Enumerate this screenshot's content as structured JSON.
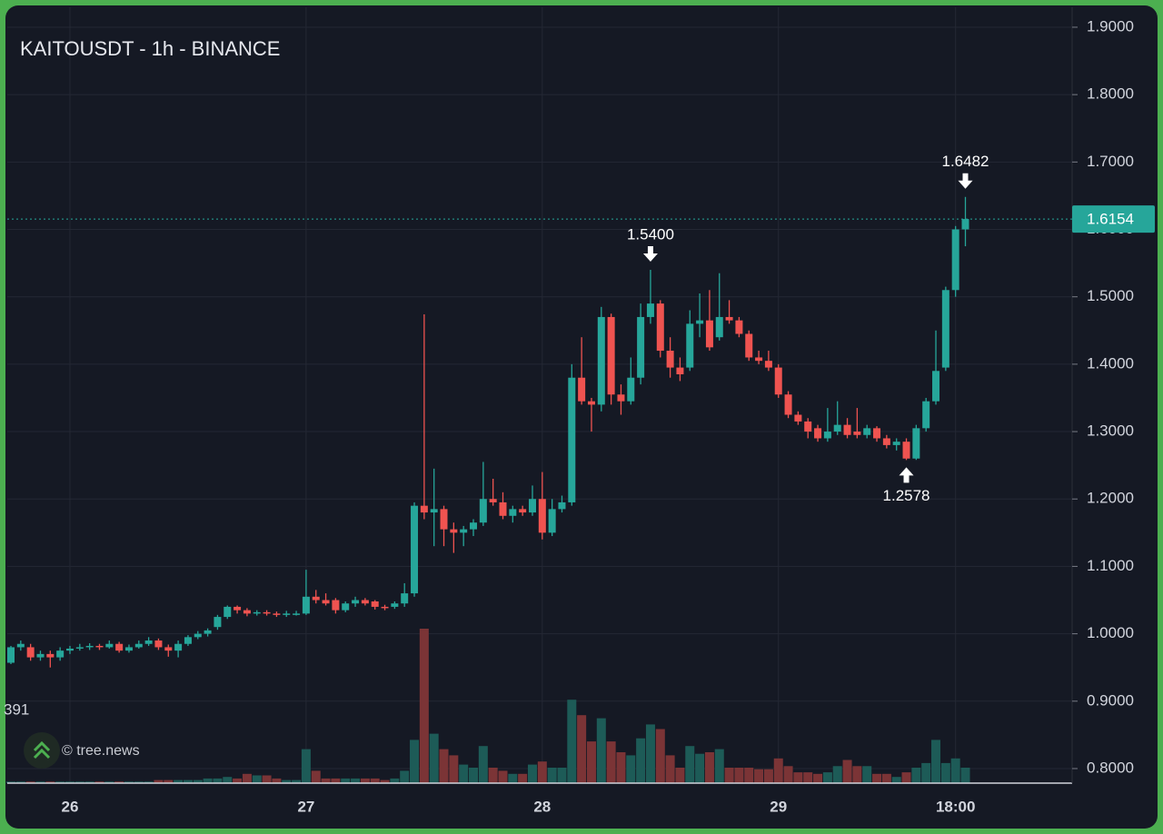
{
  "chart_data": {
    "type": "candlestick",
    "title": "KAITOUSDT - 1h - BINANCE",
    "watermark": "© tree.news",
    "categories": [
      null,
      null,
      null,
      null,
      null,
      null,
      "26",
      null,
      null,
      null,
      null,
      null,
      null,
      null,
      null,
      null,
      null,
      null,
      null,
      null,
      null,
      null,
      null,
      null,
      null,
      null,
      null,
      null,
      null,
      null,
      "27",
      null,
      null,
      null,
      null,
      null,
      null,
      null,
      null,
      null,
      null,
      null,
      null,
      null,
      null,
      null,
      null,
      null,
      null,
      null,
      null,
      null,
      null,
      null,
      "28",
      null,
      null,
      null,
      null,
      null,
      null,
      null,
      null,
      null,
      null,
      null,
      null,
      null,
      null,
      null,
      null,
      null,
      null,
      null,
      null,
      null,
      null,
      null,
      "29",
      null,
      null,
      null,
      null,
      null,
      null,
      null,
      null,
      null,
      null,
      null,
      null,
      null,
      null,
      null,
      null,
      null,
      "18:00",
      null
    ],
    "open": [
      0.957,
      0.98,
      0.98,
      0.965,
      0.97,
      0.965,
      0.975,
      0.978,
      0.98,
      0.982,
      0.98,
      0.985,
      0.975,
      0.98,
      0.985,
      0.99,
      0.98,
      0.975,
      0.985,
      0.995,
      1.0,
      1.01,
      1.025,
      1.04,
      1.035,
      1.03,
      1.032,
      1.03,
      1.028,
      1.03,
      1.03,
      1.055,
      1.05,
      1.05,
      1.035,
      1.045,
      1.05,
      1.048,
      1.04,
      1.04,
      1.045,
      1.06,
      1.19,
      1.18,
      1.185,
      1.155,
      1.15,
      1.155,
      1.165,
      1.2,
      1.195,
      1.175,
      1.185,
      1.18,
      1.2,
      1.15,
      1.185,
      1.195,
      1.38,
      1.345,
      1.34,
      1.47,
      1.355,
      1.345,
      1.38,
      1.47,
      1.49,
      1.42,
      1.395,
      1.395,
      1.46,
      1.465,
      1.44,
      1.47,
      1.465,
      1.445,
      1.41,
      1.405,
      1.395,
      1.355,
      1.325,
      1.315,
      1.305,
      1.29,
      1.3,
      1.31,
      1.3,
      1.295,
      1.305,
      1.29,
      1.28,
      1.285,
      1.26,
      1.305,
      1.345,
      1.395,
      1.51,
      1.6
    ],
    "high": [
      0.982,
      0.99,
      0.985,
      0.975,
      0.975,
      0.98,
      0.982,
      0.985,
      0.986,
      0.985,
      0.99,
      0.988,
      0.984,
      0.99,
      0.995,
      0.993,
      0.984,
      0.99,
      0.998,
      1.004,
      1.008,
      1.028,
      1.042,
      1.042,
      1.038,
      1.035,
      1.035,
      1.033,
      1.034,
      1.034,
      1.095,
      1.065,
      1.06,
      1.053,
      1.048,
      1.055,
      1.053,
      1.05,
      1.043,
      1.048,
      1.075,
      1.195,
      1.474,
      1.245,
      1.19,
      1.165,
      1.16,
      1.17,
      1.255,
      1.23,
      1.21,
      1.19,
      1.19,
      1.22,
      1.24,
      1.2,
      1.205,
      1.4,
      1.44,
      1.35,
      1.485,
      1.475,
      1.37,
      1.41,
      1.49,
      1.54,
      1.495,
      1.44,
      1.41,
      1.48,
      1.505,
      1.51,
      1.535,
      1.495,
      1.47,
      1.45,
      1.42,
      1.42,
      1.4,
      1.36,
      1.33,
      1.32,
      1.31,
      1.335,
      1.345,
      1.32,
      1.335,
      1.31,
      1.308,
      1.295,
      1.29,
      1.29,
      1.31,
      1.35,
      1.45,
      1.515,
      1.605,
      1.6482
    ],
    "low": [
      0.955,
      0.975,
      0.96,
      0.96,
      0.95,
      0.96,
      0.97,
      0.975,
      0.976,
      0.976,
      0.978,
      0.972,
      0.972,
      0.978,
      0.982,
      0.976,
      0.966,
      0.965,
      0.982,
      0.992,
      0.996,
      1.006,
      1.022,
      1.03,
      1.026,
      1.027,
      1.027,
      1.025,
      1.025,
      1.027,
      1.028,
      1.045,
      1.042,
      1.03,
      1.032,
      1.04,
      1.042,
      1.036,
      1.035,
      1.037,
      1.04,
      1.055,
      1.17,
      1.13,
      1.13,
      1.12,
      1.13,
      1.145,
      1.16,
      1.19,
      1.17,
      1.165,
      1.175,
      1.175,
      1.14,
      1.145,
      1.18,
      1.19,
      1.34,
      1.3,
      1.33,
      1.34,
      1.325,
      1.34,
      1.37,
      1.46,
      1.41,
      1.38,
      1.375,
      1.39,
      1.44,
      1.42,
      1.435,
      1.46,
      1.44,
      1.405,
      1.4,
      1.39,
      1.35,
      1.32,
      1.31,
      1.29,
      1.285,
      1.285,
      1.295,
      1.29,
      1.29,
      1.29,
      1.285,
      1.275,
      1.272,
      1.2578,
      1.258,
      1.3,
      1.34,
      1.39,
      1.5,
      1.575
    ],
    "close": [
      0.98,
      0.985,
      0.965,
      0.97,
      0.965,
      0.975,
      0.978,
      0.98,
      0.982,
      0.98,
      0.985,
      0.975,
      0.98,
      0.985,
      0.99,
      0.98,
      0.975,
      0.985,
      0.995,
      1.0,
      1.005,
      1.025,
      1.04,
      1.035,
      1.03,
      1.032,
      1.03,
      1.028,
      1.03,
      1.03,
      1.055,
      1.05,
      1.045,
      1.035,
      1.045,
      1.05,
      1.045,
      1.04,
      1.038,
      1.045,
      1.06,
      1.19,
      1.18,
      1.185,
      1.155,
      1.15,
      1.155,
      1.165,
      1.2,
      1.195,
      1.175,
      1.185,
      1.18,
      1.2,
      1.15,
      1.185,
      1.195,
      1.38,
      1.345,
      1.34,
      1.47,
      1.355,
      1.345,
      1.38,
      1.47,
      1.49,
      1.42,
      1.395,
      1.385,
      1.46,
      1.465,
      1.425,
      1.47,
      1.465,
      1.445,
      1.41,
      1.405,
      1.395,
      1.355,
      1.325,
      1.315,
      1.3,
      1.29,
      1.3,
      1.31,
      1.295,
      1.295,
      1.305,
      1.29,
      1.28,
      1.285,
      1.26,
      1.305,
      1.345,
      1.39,
      1.51,
      1.6,
      1.6154
    ],
    "volume": [
      1,
      1,
      1,
      1,
      1,
      1,
      1,
      1,
      1,
      1,
      1,
      1,
      1,
      1,
      1,
      2,
      2,
      2,
      2,
      2,
      3,
      3,
      4,
      3,
      6,
      5,
      5,
      3,
      2,
      2,
      22,
      8,
      3,
      3,
      3,
      3,
      3,
      3,
      2,
      3,
      8,
      28,
      100,
      32,
      22,
      18,
      12,
      10,
      24,
      10,
      8,
      6,
      6,
      12,
      14,
      10,
      10,
      54,
      44,
      27,
      42,
      27,
      20,
      18,
      29,
      38,
      35,
      18,
      10,
      24,
      19,
      20,
      22,
      10,
      10,
      10,
      9,
      9,
      16,
      11,
      7,
      7,
      6,
      7,
      11,
      15,
      11,
      11,
      6,
      6,
      4,
      7,
      10,
      13,
      28,
      13,
      16,
      10
    ],
    "vlim": [
      0,
      100
    ],
    "up_color": "#26a69a",
    "down_color": "#ef5350",
    "up_volume_color": "#1d5b57",
    "down_volume_color": "#7b3436",
    "ylim": [
      0.7784,
      1.9296
    ],
    "yticks": [
      {
        "value": 0.8,
        "label": "0.8000"
      },
      {
        "value": 0.9,
        "label": "0.9000"
      },
      {
        "value": 1.0,
        "label": "1.0000"
      },
      {
        "value": 1.1,
        "label": "1.1000"
      },
      {
        "value": 1.2,
        "label": "1.2000"
      },
      {
        "value": 1.3,
        "label": "1.3000"
      },
      {
        "value": 1.4,
        "label": "1.4000"
      },
      {
        "value": 1.5,
        "label": "1.5000"
      },
      {
        "value": 1.6,
        "label": "1.6000"
      },
      {
        "value": 1.7,
        "label": "1.7000"
      },
      {
        "value": 1.8,
        "label": "1.8000"
      },
      {
        "value": 1.9,
        "label": "1.9000"
      }
    ],
    "grid": true,
    "last_price": {
      "value": 1.6154,
      "label": "1.6154"
    },
    "markers": [
      {
        "label": "1.5400",
        "value": 1.54,
        "direction": "down"
      },
      {
        "label": "1.6482",
        "value": 1.6482,
        "direction": "down"
      },
      {
        "label": "1.2578",
        "value": 1.2578,
        "direction": "up"
      }
    ],
    "cut_label": "391"
  }
}
